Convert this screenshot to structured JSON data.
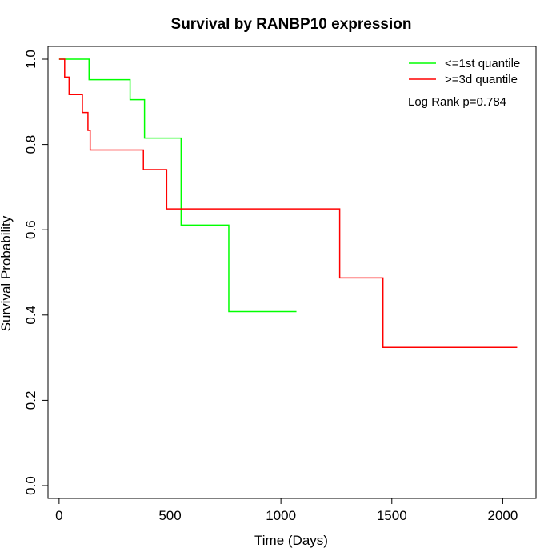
{
  "chart_data": {
    "type": "line",
    "title": "Survival by RANBP10 expression",
    "xlabel": "Time (Days)",
    "ylabel": "Survival Probability",
    "xlim": [
      -50,
      2150
    ],
    "ylim": [
      -0.03,
      1.03
    ],
    "xticks": [
      0,
      500,
      1000,
      1500,
      2000
    ],
    "yticks": [
      0.0,
      0.2,
      0.4,
      0.6,
      0.8,
      1.0
    ],
    "xtick_labels": [
      "0",
      "500",
      "1000",
      "1500",
      "2000"
    ],
    "ytick_labels": [
      "0.0",
      "0.2",
      "0.4",
      "0.6",
      "0.8",
      "1.0"
    ],
    "legend_position": "top-right",
    "annotation": "Log Rank p=0.784",
    "step": true,
    "series": [
      {
        "name": "<=1st quantile",
        "color": "#00ff00",
        "x": [
          0,
          135,
          320,
          385,
          550,
          765,
          1070
        ],
        "y": [
          1.0,
          0.952,
          0.905,
          0.815,
          0.611,
          0.408,
          0.408
        ]
      },
      {
        "name": ">=3d quantile",
        "color": "#ff0000",
        "x": [
          0,
          25,
          45,
          105,
          130,
          140,
          380,
          485,
          1265,
          1460,
          2065
        ],
        "y": [
          1.0,
          0.958,
          0.917,
          0.875,
          0.833,
          0.787,
          0.741,
          0.649,
          0.487,
          0.324,
          0.324
        ]
      }
    ]
  }
}
